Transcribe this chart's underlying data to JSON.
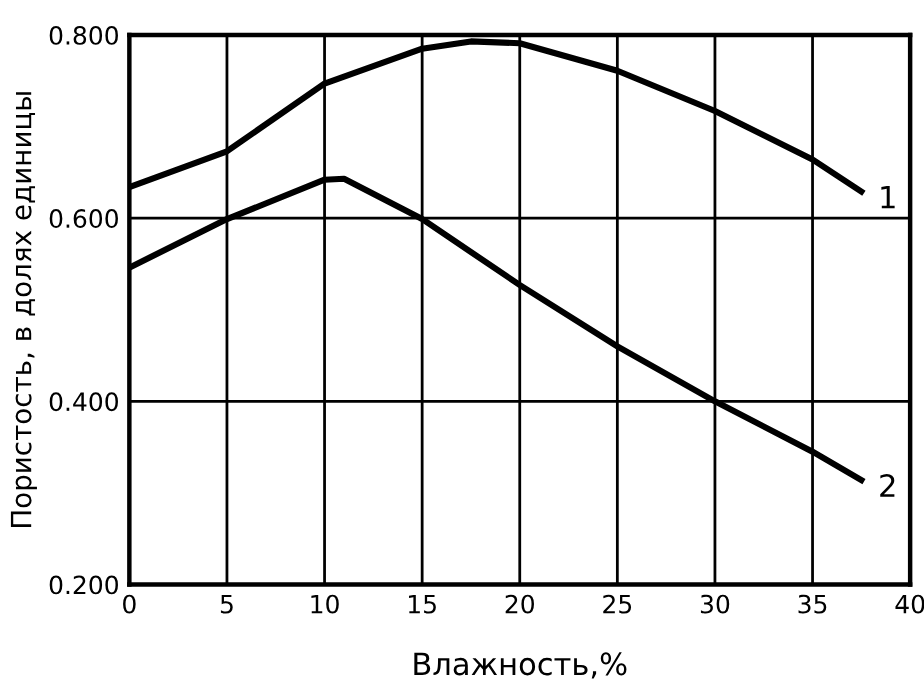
{
  "chart_data": {
    "type": "line",
    "xlabel": "Влажность,%",
    "ylabel": "Пористость, в долях единицы",
    "xlim": [
      0,
      40
    ],
    "xticks": [
      0,
      5,
      10,
      15,
      20,
      25,
      30,
      35,
      40
    ],
    "ylim": [
      0.2,
      0.8
    ],
    "yticks": [
      {
        "value": 0.2,
        "label": "0.200"
      },
      {
        "value": 0.4,
        "label": "0.400"
      },
      {
        "value": 0.6,
        "label": "0.600"
      },
      {
        "value": 0.8,
        "label": "0.800"
      }
    ],
    "grid": true,
    "marker": "none",
    "line_style": "solid",
    "series": [
      {
        "color": "#000000",
        "x": [
          0,
          5,
          10,
          15,
          17.5,
          20,
          25,
          30,
          35,
          37.5
        ],
        "values": [
          0.634,
          0.673,
          0.747,
          0.785,
          0.793,
          0.791,
          0.761,
          0.717,
          0.664,
          0.629
        ]
      },
      {
        "color": "#000000",
        "x": [
          0,
          5,
          10,
          11,
          15,
          20,
          25,
          30,
          35,
          37.5
        ],
        "values": [
          0.546,
          0.599,
          0.642,
          0.643,
          0.599,
          0.527,
          0.46,
          0.4,
          0.345,
          0.314
        ]
      }
    ],
    "annotations": [
      {
        "text": "1",
        "x": 37.5,
        "y": 0.629
      },
      {
        "text": "2",
        "x": 37.5,
        "y": 0.314
      }
    ]
  }
}
